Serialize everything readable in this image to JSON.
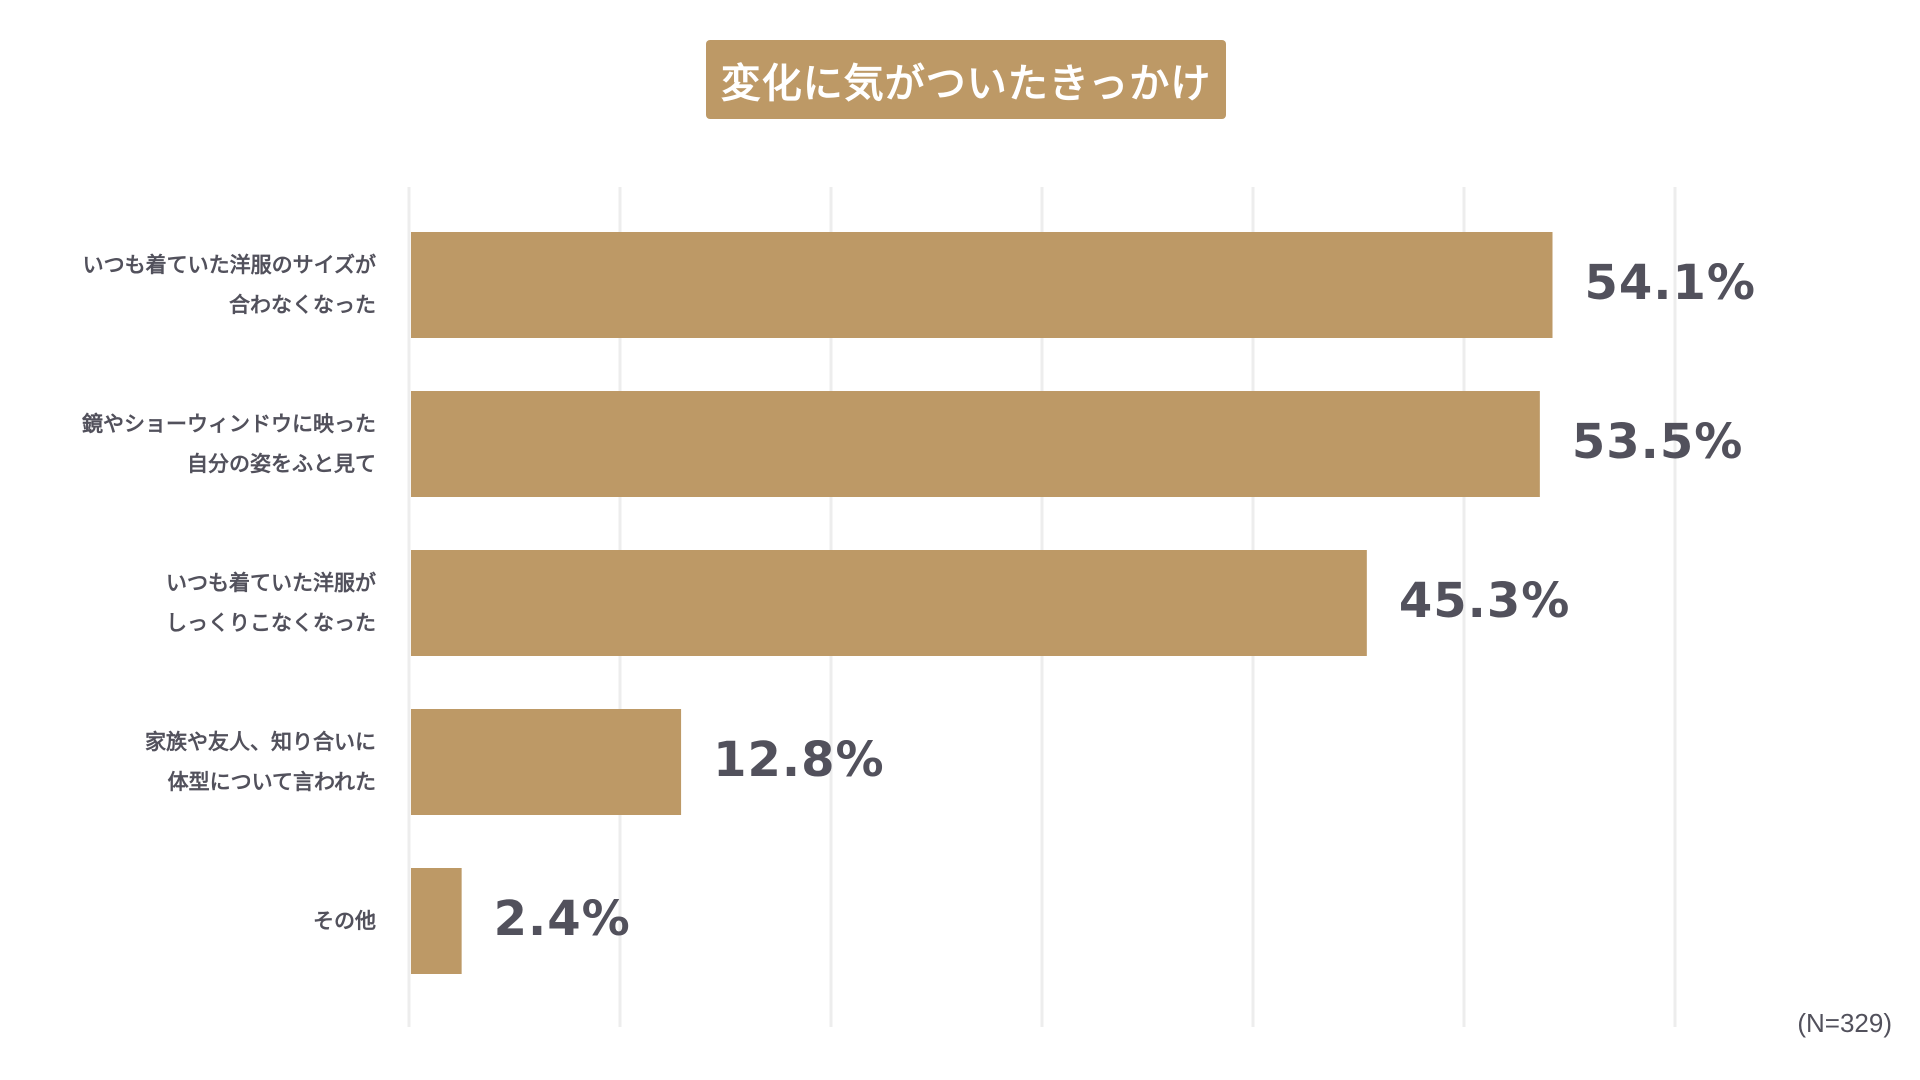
{
  "chart_data": {
    "type": "bar",
    "orientation": "horizontal",
    "title": "変化に気がついたきっかけ",
    "categories": [
      [
        "いつも着ていた洋服のサイズが",
        "合わなくなった"
      ],
      [
        "鏡やショーウィンドウに映った",
        "自分の姿をふと見て"
      ],
      [
        "いつも着ていた洋服が",
        "しっくりこなくなった"
      ],
      [
        "家族や友人、知り合いに",
        "体型について言われた"
      ],
      [
        "その他"
      ]
    ],
    "values": [
      54.1,
      53.5,
      45.3,
      12.8,
      2.4
    ],
    "value_labels": [
      "54.1%",
      "53.5%",
      "45.3%",
      "12.8%",
      "2.4%"
    ],
    "xlim": [
      0,
      60
    ],
    "grid": true,
    "bar_color": "#bd9966",
    "grid_color": "#ededed",
    "text_color": "#52515c",
    "note": "(N=329)"
  }
}
